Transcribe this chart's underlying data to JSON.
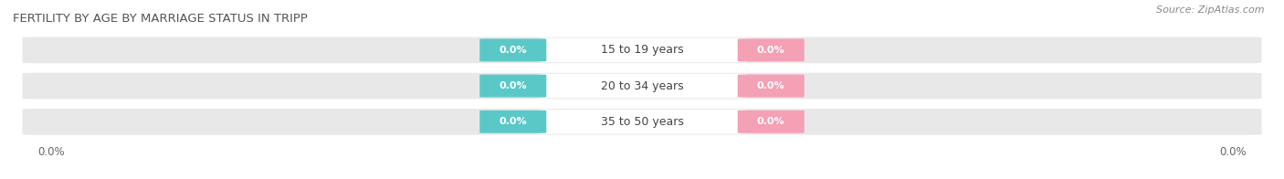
{
  "title": "FERTILITY BY AGE BY MARRIAGE STATUS IN TRIPP",
  "source": "Source: ZipAtlas.com",
  "categories": [
    "15 to 19 years",
    "20 to 34 years",
    "35 to 50 years"
  ],
  "married_color": "#5bc8c8",
  "unmarried_color": "#f4a0b5",
  "bar_bg_color": "#e8e8e8",
  "bar_center_color": "#f8f8f8",
  "left_label": "0.0%",
  "right_label": "0.0%",
  "title_fontsize": 9.5,
  "source_fontsize": 8,
  "cat_label_fontsize": 9,
  "value_fontsize": 8,
  "legend_fontsize": 9,
  "tick_fontsize": 8.5
}
